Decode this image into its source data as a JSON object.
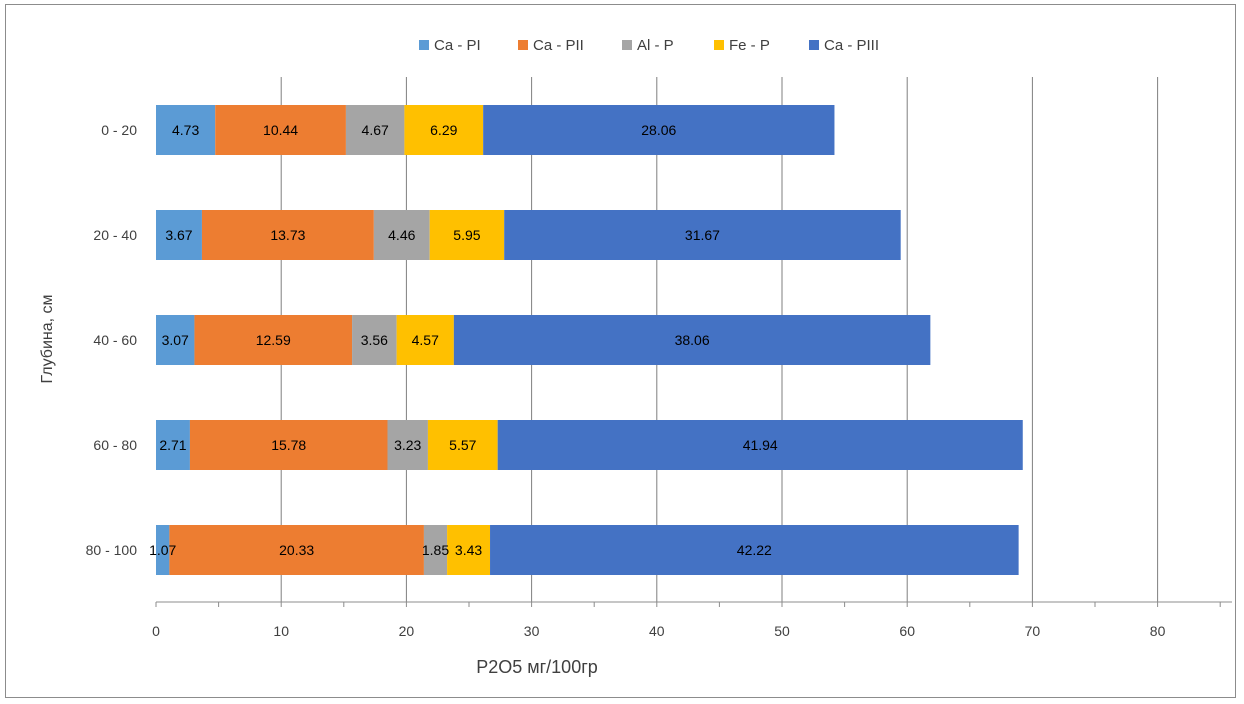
{
  "chart_data": {
    "type": "bar",
    "orientation": "horizontal",
    "stacked": true,
    "title": "",
    "xlabel": "P2O5 мг/100гр",
    "ylabel": "Глубина, см",
    "xlim": [
      0,
      85
    ],
    "x_ticks": [
      0,
      10,
      20,
      30,
      40,
      50,
      60,
      70,
      80
    ],
    "grid": "vertical",
    "legend_position": "top",
    "categories": [
      "0 - 20",
      "20 - 40",
      "40 - 60",
      "60 - 80",
      "80 - 100"
    ],
    "series": [
      {
        "name": "Ca - PI",
        "color": "#5B9BD5",
        "values": [
          4.73,
          3.67,
          3.07,
          2.71,
          1.07
        ]
      },
      {
        "name": "Ca - PII",
        "color": "#ED7D31",
        "values": [
          10.44,
          13.73,
          12.59,
          15.78,
          20.33
        ]
      },
      {
        "name": "Al - P",
        "color": "#A5A5A5",
        "values": [
          4.67,
          4.46,
          3.56,
          3.23,
          1.85
        ]
      },
      {
        "name": "Fe - P",
        "color": "#FFC000",
        "values": [
          6.29,
          5.95,
          4.57,
          5.57,
          3.43
        ]
      },
      {
        "name": "Ca - PIII",
        "color": "#4472C4",
        "values": [
          28.06,
          31.67,
          38.06,
          41.94,
          42.22
        ]
      }
    ],
    "data_labels": [
      [
        "4.73",
        "3.67",
        "3.07",
        "2.71",
        "1.07"
      ],
      [
        "10.44",
        "13.73",
        "12.59",
        "15.78",
        "20.33"
      ],
      [
        "4.67",
        "4.46",
        "3.56",
        "3.23",
        "1.85"
      ],
      [
        "6.29",
        "5.95",
        "4.57",
        "5.57",
        "3.43"
      ],
      [
        "28.06",
        "31.67",
        "38.06",
        "41.94",
        "42.22"
      ]
    ]
  }
}
